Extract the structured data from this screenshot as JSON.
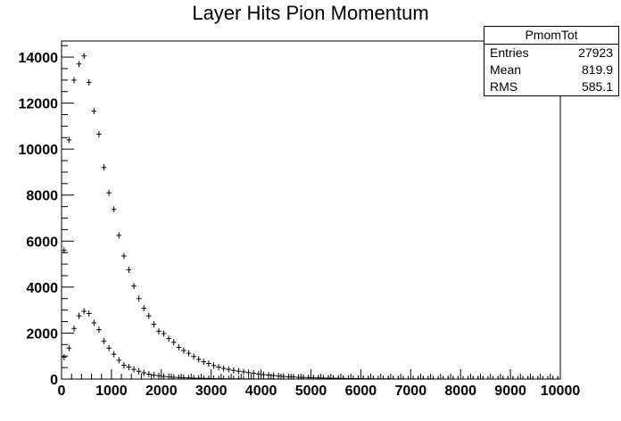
{
  "chart_data": {
    "type": "scatter",
    "title": "Layer Hits Pion Momentum",
    "xlabel": "",
    "ylabel": "",
    "xlim": [
      0,
      10000
    ],
    "ylim": [
      0,
      14700
    ],
    "xticks": [
      0,
      1000,
      2000,
      3000,
      4000,
      5000,
      6000,
      7000,
      8000,
      9000,
      10000
    ],
    "yticks": [
      0,
      2000,
      4000,
      6000,
      8000,
      10000,
      12000,
      14000
    ],
    "bin_width": 100,
    "grid": false,
    "legend": "none",
    "series": [
      {
        "x": [
          50,
          150,
          250,
          350,
          450,
          550,
          650,
          750,
          850,
          950,
          1050,
          1150,
          1250,
          1350,
          1450,
          1550,
          1650,
          1750,
          1850,
          1950,
          2050,
          2150,
          2250,
          2350,
          2450,
          2550,
          2650,
          2750,
          2850,
          2950,
          3050,
          3150,
          3250,
          3350,
          3450,
          3550,
          3650,
          3750,
          3850,
          3950,
          4050,
          4150,
          4250,
          4350,
          4450,
          4550,
          4650,
          4750,
          4850,
          4950,
          5050,
          5150,
          5250,
          5350,
          5450,
          5550,
          5650,
          5750,
          5850,
          5950,
          6050,
          6150,
          6250,
          6350,
          6450,
          6550,
          6650,
          6750,
          6850,
          6950,
          7050,
          7150,
          7250,
          7350,
          7450,
          7550,
          7650,
          7750,
          7850,
          7950,
          8050,
          8150,
          8250,
          8350,
          8450,
          8550,
          8650,
          8750,
          8850,
          8950,
          9050,
          9150,
          9250,
          9350,
          9450,
          9550,
          9650,
          9750,
          9850,
          9950
        ],
        "values": [
          5600,
          10400,
          13000,
          13700,
          14050,
          12900,
          11650,
          10650,
          9200,
          8100,
          7380,
          6250,
          5350,
          4750,
          4050,
          3500,
          3080,
          2750,
          2380,
          2080,
          1980,
          1760,
          1600,
          1380,
          1240,
          1120,
          980,
          860,
          750,
          680,
          590,
          520,
          460,
          420,
          380,
          345,
          315,
          280,
          250,
          225,
          195,
          175,
          155,
          135,
          118,
          102,
          90,
          80,
          70,
          62,
          54,
          48,
          42,
          37,
          32,
          28,
          25,
          22,
          19,
          17,
          15,
          13,
          11,
          10,
          9,
          8,
          7,
          6,
          5,
          5,
          4,
          4,
          3,
          3,
          3,
          2,
          2,
          2,
          2,
          1,
          1,
          1,
          1,
          1,
          1,
          1,
          1,
          1,
          0,
          0,
          0,
          0,
          0,
          0,
          0,
          0,
          0,
          0,
          0,
          0
        ]
      },
      {
        "x": [
          50,
          150,
          250,
          350,
          450,
          550,
          650,
          750,
          850,
          950,
          1050,
          1150,
          1250,
          1350,
          1450,
          1550,
          1650,
          1750,
          1850,
          1950,
          2050,
          2150,
          2250,
          2350,
          2450,
          2550,
          2650,
          2750,
          2850,
          2950,
          3050,
          3150,
          3250,
          3350,
          3450,
          3550,
          3650,
          3750,
          3850,
          3950,
          4050,
          4150,
          4250,
          4350,
          4450,
          4550,
          4650,
          4750,
          4850,
          4950,
          5050,
          5150,
          5250,
          5350,
          5450,
          5550,
          5650,
          5750,
          5850,
          5950,
          6050,
          6150,
          6250,
          6350,
          6450,
          6550,
          6650,
          6750,
          6850,
          6950,
          7050,
          7150,
          7250,
          7350,
          7450,
          7550,
          7650,
          7750,
          7850,
          7950,
          8050,
          8150,
          8250,
          8350,
          8450,
          8550,
          8650,
          8750,
          8850,
          8950,
          9050,
          9150,
          9250,
          9350,
          9450,
          9550,
          9650,
          9750,
          9850,
          9950
        ],
        "values": [
          950,
          1350,
          2200,
          2750,
          2950,
          2850,
          2450,
          2150,
          1650,
          1350,
          1080,
          820,
          600,
          520,
          420,
          340,
          270,
          215,
          175,
          145,
          118,
          98,
          80,
          66,
          55,
          46,
          38,
          32,
          27,
          22,
          18,
          15,
          13,
          11,
          9,
          8,
          7,
          6,
          5,
          4,
          4,
          3,
          3,
          2,
          2,
          2,
          1,
          1,
          1,
          1,
          1,
          0,
          0,
          0,
          0,
          0,
          0,
          0,
          0,
          0,
          0,
          0,
          0,
          0,
          0,
          0,
          0,
          0,
          0,
          0,
          0,
          0,
          0,
          0,
          0,
          0,
          0,
          0,
          0,
          0,
          0,
          0,
          0,
          0,
          0,
          0,
          0,
          0,
          0,
          0,
          0,
          0,
          0,
          0,
          0,
          0,
          0,
          0,
          0,
          0
        ]
      }
    ],
    "stats_box": {
      "name": "PmomTot",
      "entries_label": "Entries",
      "entries": "27923",
      "mean_label": "Mean",
      "mean": "819.9",
      "rms_label": "RMS",
      "rms": "585.1"
    }
  }
}
